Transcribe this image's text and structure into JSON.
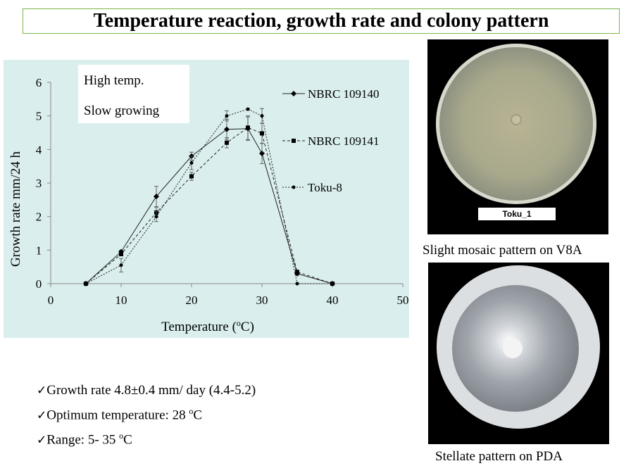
{
  "title": "Temperature reaction, growth rate and colony pattern",
  "chart_data": {
    "type": "line",
    "xlabel": "Temperature (oC)",
    "xlabel_parts": {
      "pre": "Temperature (",
      "sup": "o",
      "post": "C)"
    },
    "ylabel": "Growth rate mm/24 h",
    "xlim": [
      0,
      50
    ],
    "ylim": [
      0,
      6
    ],
    "xticks": [
      "0",
      "10",
      "20",
      "30",
      "40",
      "50"
    ],
    "yticks": [
      "0",
      "1",
      "2",
      "3",
      "4",
      "5",
      "6"
    ],
    "annotation_lines": [
      "High temp.",
      "Slow growing"
    ],
    "background": "#daeeee",
    "series": [
      {
        "name": "NBRC 109140",
        "marker": "diamond",
        "dash": "solid",
        "x": [
          5,
          10,
          15,
          20,
          25,
          28,
          30,
          35,
          40
        ],
        "y": [
          0,
          0.95,
          2.6,
          3.8,
          4.6,
          4.62,
          3.88,
          0.3,
          0
        ],
        "err": [
          0,
          0.05,
          0.3,
          0.12,
          0.3,
          0.35,
          0.3,
          0.05,
          0
        ]
      },
      {
        "name": "NBRC 109141",
        "marker": "square",
        "dash": "dashed",
        "x": [
          5,
          10,
          15,
          20,
          25,
          28,
          30,
          35,
          40
        ],
        "y": [
          0,
          0.88,
          2.12,
          3.2,
          4.2,
          4.65,
          4.48,
          0.35,
          0
        ],
        "err": [
          0,
          0.05,
          0.15,
          0.12,
          0.15,
          0.35,
          0.3,
          0.05,
          0
        ]
      },
      {
        "name": "Toku-8",
        "marker": "circle",
        "dash": "dotted",
        "x": [
          5,
          10,
          15,
          20,
          25,
          28,
          30,
          35,
          40
        ],
        "y": [
          0,
          0.55,
          2.0,
          3.6,
          5.0,
          5.2,
          5.0,
          0,
          0
        ],
        "err": [
          0,
          0.2,
          0.15,
          0.2,
          0.15,
          0.02,
          0.22,
          0,
          0
        ]
      }
    ]
  },
  "photos": {
    "top": {
      "strain_label": "Toku_1",
      "caption": "Slight mosaic pattern on V8A"
    },
    "bottom": {
      "caption": "Stellate pattern on PDA"
    }
  },
  "bullets": [
    {
      "check": "✓",
      "text": "Growth rate 4.8±0.4 mm/ day (4.4-5.2)",
      "sup": "",
      "post": ""
    },
    {
      "check": "✓",
      "text": "Optimum temperature: 28 ",
      "sup": "o",
      "post": "C"
    },
    {
      "check": "✓",
      "text": "Range: 5- 35 ",
      "sup": "o",
      "post": "C"
    }
  ]
}
